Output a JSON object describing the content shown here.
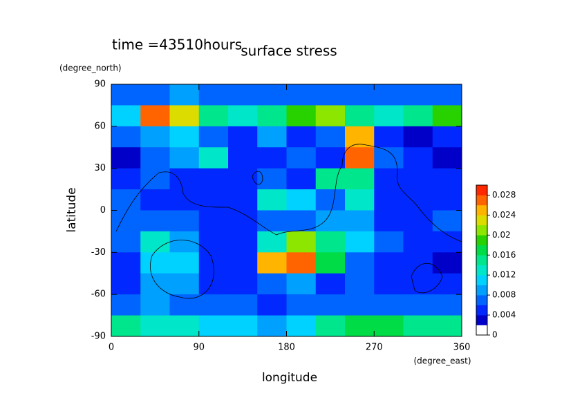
{
  "chart_data": {
    "type": "contour",
    "title": "surface stress",
    "subtitle": "time =43510hours",
    "x_label": "longitude",
    "x_unit": "(degree_east)",
    "y_label": "latitude",
    "y_unit": "(degree_north)",
    "xlim": [
      0,
      360
    ],
    "xticks": [
      0,
      90,
      180,
      270,
      360
    ],
    "ylim": [
      -90,
      90
    ],
    "yticks": [
      -90,
      -60,
      -30,
      0,
      30,
      60,
      90
    ],
    "zlim": [
      0,
      0.03
    ],
    "zticks": [
      0,
      0.004,
      0.008,
      0.012,
      0.016,
      0.02,
      0.024,
      0.028
    ],
    "colors": [
      "#ffffff",
      "#0000c8",
      "#0028ff",
      "#0064ff",
      "#00a0ff",
      "#00d2ff",
      "#00e6c8",
      "#00e68c",
      "#00dc46",
      "#28d200",
      "#8ce600",
      "#dcdc00",
      "#ffb400",
      "#ff6400",
      "#ff2800"
    ],
    "x": [
      15,
      45,
      75,
      105,
      135,
      165,
      195,
      225,
      255,
      285,
      315,
      345
    ],
    "y": [
      82.5,
      67.5,
      52.5,
      37.5,
      22.5,
      7.5,
      -7.5,
      -22.5,
      -37.5,
      -52.5,
      -67.5,
      -82.5
    ],
    "z": [
      [
        0.006,
        0.006,
        0.008,
        0.006,
        0.006,
        0.006,
        0.006,
        0.006,
        0.006,
        0.006,
        0.006,
        0.006
      ],
      [
        0.01,
        0.026,
        0.022,
        0.014,
        0.012,
        0.014,
        0.018,
        0.02,
        0.014,
        0.012,
        0.014,
        0.018
      ],
      [
        0.006,
        0.008,
        0.01,
        0.006,
        0.004,
        0.008,
        0.004,
        0.006,
        0.024,
        0.004,
        0.002,
        0.004
      ],
      [
        0.002,
        0.006,
        0.008,
        0.012,
        0.004,
        0.004,
        0.006,
        0.004,
        0.026,
        0.006,
        0.004,
        0.002
      ],
      [
        0.004,
        0.006,
        0.004,
        0.004,
        0.004,
        0.006,
        0.004,
        0.014,
        0.014,
        0.004,
        0.004,
        0.004
      ],
      [
        0.006,
        0.004,
        0.004,
        0.004,
        0.004,
        0.012,
        0.01,
        0.006,
        0.012,
        0.004,
        0.004,
        0.004
      ],
      [
        0.006,
        0.006,
        0.006,
        0.004,
        0.004,
        0.006,
        0.006,
        0.008,
        0.008,
        0.004,
        0.004,
        0.006
      ],
      [
        0.006,
        0.012,
        0.008,
        0.004,
        0.004,
        0.012,
        0.02,
        0.014,
        0.01,
        0.006,
        0.004,
        0.004
      ],
      [
        0.004,
        0.01,
        0.01,
        0.004,
        0.004,
        0.024,
        0.026,
        0.016,
        0.006,
        0.004,
        0.004,
        0.002
      ],
      [
        0.004,
        0.008,
        0.008,
        0.004,
        0.004,
        0.006,
        0.008,
        0.004,
        0.006,
        0.004,
        0.004,
        0.004
      ],
      [
        0.006,
        0.008,
        0.006,
        0.006,
        0.006,
        0.004,
        0.006,
        0.006,
        0.006,
        0.006,
        0.006,
        0.006
      ],
      [
        0.014,
        0.012,
        0.012,
        0.01,
        0.01,
        0.008,
        0.01,
        0.014,
        0.016,
        0.016,
        0.014,
        0.014
      ]
    ]
  }
}
